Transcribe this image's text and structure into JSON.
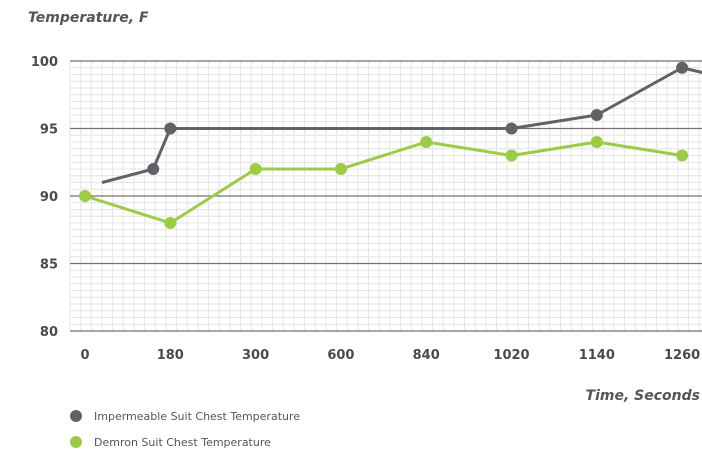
{
  "chart_data": {
    "type": "line",
    "ylabel": "Temperature, F",
    "xlabel": "Time, Seconds",
    "categories": [
      "0",
      "180",
      "300",
      "600",
      "840",
      "1020",
      "1140",
      "1260"
    ],
    "ylim": [
      80,
      100
    ],
    "yticks": [
      80,
      85,
      90,
      95,
      100
    ],
    "grid": true,
    "legend_position": "bottom-left",
    "series": [
      {
        "name": "Impermeable Suit Chest Temperature",
        "color": "#5f6366",
        "points": [
          [
            0.2,
            91
          ],
          [
            0.8,
            92
          ],
          [
            1,
            95
          ],
          [
            5,
            95
          ],
          [
            6,
            96
          ],
          [
            7,
            99.5
          ],
          [
            8,
            98
          ]
        ],
        "markers": [
          false,
          true,
          true,
          true,
          true,
          true,
          true
        ]
      },
      {
        "name": "Demron Suit Chest Temperature",
        "color": "#9ccc45",
        "points": [
          [
            0,
            90
          ],
          [
            1,
            88
          ],
          [
            2,
            92
          ],
          [
            3,
            92
          ],
          [
            4,
            94
          ],
          [
            5,
            93
          ],
          [
            6,
            94
          ],
          [
            7,
            93
          ]
        ],
        "markers": [
          true,
          true,
          true,
          true,
          true,
          true,
          true,
          true
        ]
      }
    ]
  }
}
